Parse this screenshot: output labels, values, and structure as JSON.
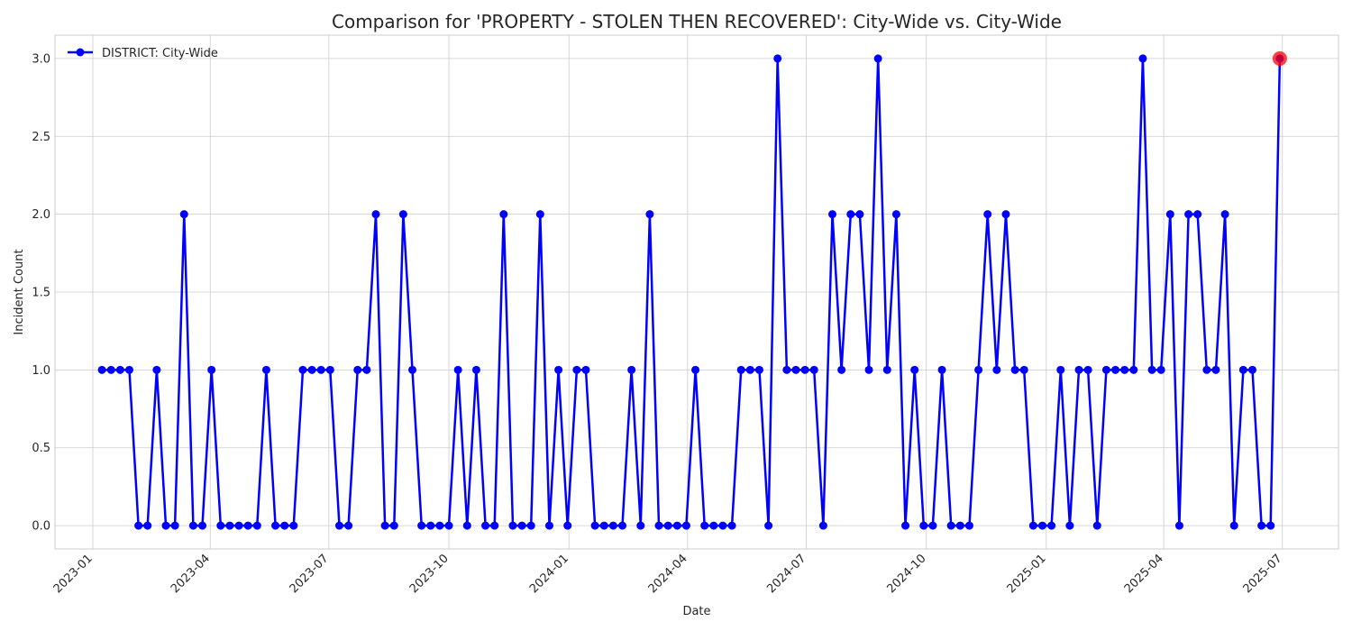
{
  "chart_data": {
    "type": "line",
    "title": "Comparison for 'PROPERTY - STOLEN THEN RECOVERED': City-Wide vs. City-Wide",
    "xlabel": "Date",
    "ylabel": "Incident Count",
    "x_range": [
      "2022-12-03",
      "2025-08-13"
    ],
    "ylim": [
      -0.15,
      3.15
    ],
    "grid": true,
    "legend_placement": "top-left",
    "x_ticks": [
      {
        "date": "2023-01-01",
        "label": "2023-01"
      },
      {
        "date": "2023-04-01",
        "label": "2023-04"
      },
      {
        "date": "2023-07-01",
        "label": "2023-07"
      },
      {
        "date": "2023-10-01",
        "label": "2023-10"
      },
      {
        "date": "2024-01-01",
        "label": "2024-01"
      },
      {
        "date": "2024-04-01",
        "label": "2024-04"
      },
      {
        "date": "2024-07-01",
        "label": "2024-07"
      },
      {
        "date": "2024-10-01",
        "label": "2024-10"
      },
      {
        "date": "2025-01-01",
        "label": "2025-01"
      },
      {
        "date": "2025-04-01",
        "label": "2025-04"
      },
      {
        "date": "2025-07-01",
        "label": "2025-07"
      }
    ],
    "y_ticks": [
      {
        "value": 0.0,
        "label": "0.0"
      },
      {
        "value": 0.5,
        "label": "0.5"
      },
      {
        "value": 1.0,
        "label": "1.0"
      },
      {
        "value": 1.5,
        "label": "1.5"
      },
      {
        "value": 2.0,
        "label": "2.0"
      },
      {
        "value": 2.5,
        "label": "2.5"
      },
      {
        "value": 3.0,
        "label": "3.0"
      }
    ],
    "x_start": "2023-01-08",
    "x_step_days": 7,
    "series": [
      {
        "name": "DISTRICT: City-Wide",
        "color": "#0000ff",
        "values": [
          1,
          1,
          1,
          1,
          0,
          0,
          1,
          0,
          0,
          2,
          0,
          0,
          1,
          0,
          0,
          0,
          0,
          0,
          1,
          0,
          0,
          0,
          1,
          1,
          1,
          1,
          0,
          0,
          1,
          1,
          2,
          0,
          0,
          2,
          1,
          0,
          0,
          0,
          0,
          1,
          0,
          1,
          0,
          0,
          2,
          0,
          0,
          0,
          2,
          0,
          1,
          0,
          1,
          1,
          0,
          0,
          0,
          0,
          1,
          0,
          2,
          0,
          0,
          0,
          0,
          1,
          0,
          0,
          0,
          0,
          1,
          1,
          1,
          0,
          3,
          1,
          1,
          1,
          1,
          0,
          2,
          1,
          2,
          2,
          1,
          3,
          1,
          2,
          0,
          1,
          0,
          0,
          1,
          0,
          0,
          0,
          1,
          2,
          1,
          2,
          1,
          1,
          0,
          0,
          0,
          1,
          0,
          1,
          1,
          0,
          1,
          1,
          1,
          1,
          3,
          1,
          1,
          2,
          0,
          2,
          2,
          1,
          1,
          2,
          0,
          1,
          1,
          0,
          0,
          3
        ]
      }
    ],
    "highlight": {
      "date": "2025-06-29",
      "value": 3,
      "color": "#ff0000"
    }
  }
}
